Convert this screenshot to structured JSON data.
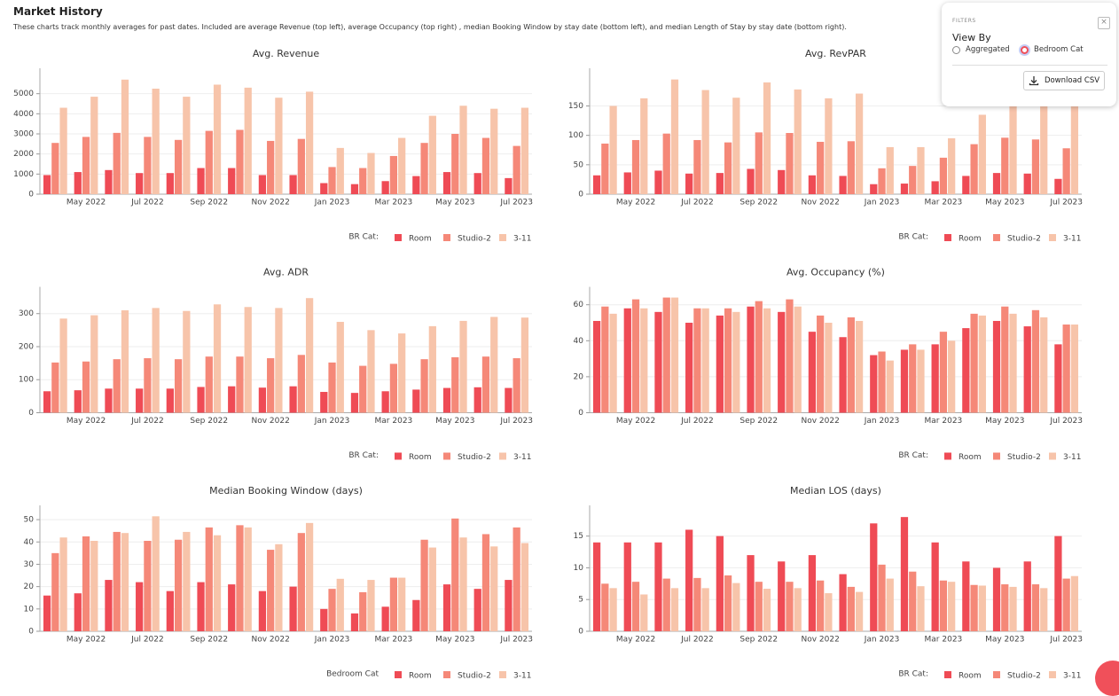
{
  "header": {
    "title": "Market History",
    "description": "These charts track monthly averages for past dates. Included are average Revenue (top left), average Occupancy (top right) , median Booking Window by stay date (bottom left), and median Length of Stay by stay date (bottom right)."
  },
  "filters": {
    "title": "FILTERS",
    "view_by": "View By",
    "options": [
      "Aggregated",
      "Bedroom Cat"
    ],
    "selected": 1,
    "download": "Download CSV"
  },
  "chart_data": [
    {
      "type": "bar",
      "title": "Avg. Revenue",
      "legend_title": "BR Cat:",
      "grid": true,
      "categories": [
        null,
        "May 2022",
        null,
        "Jul 2022",
        null,
        "Sep 2022",
        null,
        "Nov 2022",
        null,
        "Jan 2023",
        null,
        "Mar 2023",
        null,
        "May 2023",
        null,
        "Jul 2023"
      ],
      "ylim": [
        0,
        6000
      ],
      "yticks": [
        0,
        1000,
        2000,
        3000,
        4000,
        5000
      ],
      "series": [
        {
          "name": "Room",
          "color": "#ef4b55",
          "values": [
            950,
            1100,
            1200,
            1050,
            1050,
            1300,
            1300,
            950,
            950,
            550,
            500,
            650,
            900,
            1100,
            1050,
            800
          ]
        },
        {
          "name": "Studio-2",
          "color": "#f58878",
          "values": [
            2550,
            2850,
            3050,
            2850,
            2700,
            3150,
            3200,
            2650,
            2750,
            1350,
            1300,
            1900,
            2550,
            3000,
            2800,
            2400
          ]
        },
        {
          "name": "3-11",
          "color": "#f7c4aa",
          "values": [
            4300,
            4850,
            5700,
            5250,
            4850,
            5450,
            5300,
            4800,
            5100,
            2300,
            2050,
            2800,
            3900,
            4400,
            4250,
            4300
          ]
        }
      ]
    },
    {
      "type": "bar",
      "title": "Avg. RevPAR",
      "legend_title": "BR Cat:",
      "grid": true,
      "categories": [
        null,
        "May 2022",
        null,
        "Jul 2022",
        null,
        "Sep 2022",
        null,
        "Nov 2022",
        null,
        "Jan 2023",
        null,
        "Mar 2023",
        null,
        "May 2023",
        null,
        "Jul 2023"
      ],
      "ylim": [
        0,
        205
      ],
      "yticks": [
        0,
        50,
        100,
        150
      ],
      "series": [
        {
          "name": "Room",
          "color": "#ef4b55",
          "values": [
            32,
            37,
            40,
            35,
            36,
            43,
            41,
            32,
            31,
            17,
            18,
            22,
            31,
            36,
            35,
            26
          ]
        },
        {
          "name": "Studio-2",
          "color": "#f58878",
          "values": [
            86,
            92,
            103,
            92,
            88,
            105,
            104,
            89,
            90,
            44,
            48,
            62,
            85,
            96,
            93,
            78
          ]
        },
        {
          "name": "3-11",
          "color": "#f7c4aa",
          "values": [
            150,
            163,
            195,
            177,
            164,
            190,
            178,
            163,
            171,
            80,
            80,
            95,
            135,
            160,
            150,
            155
          ]
        }
      ]
    },
    {
      "type": "bar",
      "title": "Avg. ADR",
      "legend_title": "BR Cat:",
      "grid": true,
      "categories": [
        null,
        "May 2022",
        null,
        "Jul 2022",
        null,
        "Sep 2022",
        null,
        "Nov 2022",
        null,
        "Jan 2023",
        null,
        "Mar 2023",
        null,
        "May 2023",
        null,
        "Jul 2023"
      ],
      "ylim": [
        0,
        365
      ],
      "yticks": [
        0,
        100,
        200,
        300
      ],
      "series": [
        {
          "name": "Room",
          "color": "#ef4b55",
          "values": [
            65,
            68,
            73,
            73,
            73,
            78,
            80,
            76,
            80,
            63,
            60,
            65,
            70,
            75,
            77,
            75
          ]
        },
        {
          "name": "Studio-2",
          "color": "#f58878",
          "values": [
            152,
            155,
            162,
            165,
            162,
            170,
            170,
            165,
            175,
            152,
            142,
            148,
            162,
            168,
            170,
            165
          ]
        },
        {
          "name": "3-11",
          "color": "#f7c4aa",
          "values": [
            285,
            295,
            310,
            317,
            308,
            328,
            320,
            317,
            347,
            275,
            250,
            240,
            262,
            278,
            290,
            288
          ]
        }
      ]
    },
    {
      "type": "bar",
      "title": "Avg. Occupancy (%)",
      "legend_title": "BR Cat:",
      "grid": true,
      "categories": [
        null,
        "May 2022",
        null,
        "Jul 2022",
        null,
        "Sep 2022",
        null,
        "Nov 2022",
        null,
        "Jan 2023",
        null,
        "Mar 2023",
        null,
        "May 2023",
        null,
        "Jul 2023"
      ],
      "ylim": [
        0,
        67
      ],
      "yticks": [
        0,
        20,
        40,
        60
      ],
      "series": [
        {
          "name": "Room",
          "color": "#ef4b55",
          "values": [
            51,
            58,
            56,
            50,
            54,
            59,
            56,
            45,
            42,
            32,
            35,
            38,
            47,
            51,
            48,
            38
          ]
        },
        {
          "name": "Studio-2",
          "color": "#f58878",
          "values": [
            59,
            63,
            64,
            58,
            58,
            62,
            63,
            54,
            53,
            34,
            38,
            45,
            55,
            59,
            57,
            49
          ]
        },
        {
          "name": "3-11",
          "color": "#f7c4aa",
          "values": [
            55,
            58,
            64,
            58,
            56,
            58,
            59,
            50,
            51,
            29,
            35,
            40,
            54,
            55,
            53,
            49
          ]
        }
      ]
    },
    {
      "type": "bar",
      "title": "Median Booking Window (days)",
      "legend_title": "Bedroom Cat",
      "grid": true,
      "categories": [
        null,
        "May 2022",
        null,
        "Jul 2022",
        null,
        "Sep 2022",
        null,
        "Nov 2022",
        null,
        "Jan 2023",
        null,
        "Mar 2023",
        null,
        "May 2023",
        null,
        "Jul 2023"
      ],
      "ylim": [
        0,
        54
      ],
      "yticks": [
        0,
        10,
        20,
        30,
        40,
        50
      ],
      "series": [
        {
          "name": "Room",
          "color": "#ef4b55",
          "values": [
            16,
            17,
            23,
            22,
            18,
            22,
            21,
            18,
            20,
            10,
            8,
            11,
            14,
            21,
            19,
            23
          ]
        },
        {
          "name": "Studio-2",
          "color": "#f58878",
          "values": [
            35,
            42.5,
            44.5,
            40.5,
            41,
            46.5,
            47.5,
            36.5,
            44,
            19,
            17.5,
            24,
            41,
            50.5,
            43.5,
            46.5
          ]
        },
        {
          "name": "3-11",
          "color": "#f7c4aa",
          "values": [
            42,
            40.5,
            44,
            51.5,
            44.5,
            43,
            46.5,
            39,
            48.5,
            23.5,
            23,
            24,
            37.5,
            42,
            38,
            39.5
          ]
        }
      ]
    },
    {
      "type": "bar",
      "title": "Median LOS (days)",
      "legend_title": "BR Cat:",
      "grid": true,
      "categories": [
        null,
        "May 2022",
        null,
        "Jul 2022",
        null,
        "Sep 2022",
        null,
        "Nov 2022",
        null,
        "Jan 2023",
        null,
        "Mar 2023",
        null,
        "May 2023",
        null,
        "Jul 2023"
      ],
      "ylim": [
        0,
        19
      ],
      "yticks": [
        0,
        5,
        10,
        15
      ],
      "series": [
        {
          "name": "Room",
          "color": "#ef4b55",
          "values": [
            14,
            14,
            14,
            16,
            15,
            12,
            11,
            12,
            9,
            17,
            18,
            14,
            11,
            10,
            11,
            15
          ]
        },
        {
          "name": "Studio-2",
          "color": "#f58878",
          "values": [
            7.5,
            7.8,
            8.3,
            8.4,
            8.8,
            7.8,
            7.8,
            8,
            7,
            10.5,
            9.4,
            8,
            7.3,
            7.4,
            7.4,
            8.3
          ]
        },
        {
          "name": "3-11",
          "color": "#f7c4aa",
          "values": [
            6.8,
            5.8,
            6.8,
            6.8,
            7.6,
            6.7,
            6.8,
            6,
            6.2,
            8.3,
            7.1,
            7.8,
            7.2,
            7,
            6.8,
            8.7
          ]
        }
      ]
    }
  ]
}
